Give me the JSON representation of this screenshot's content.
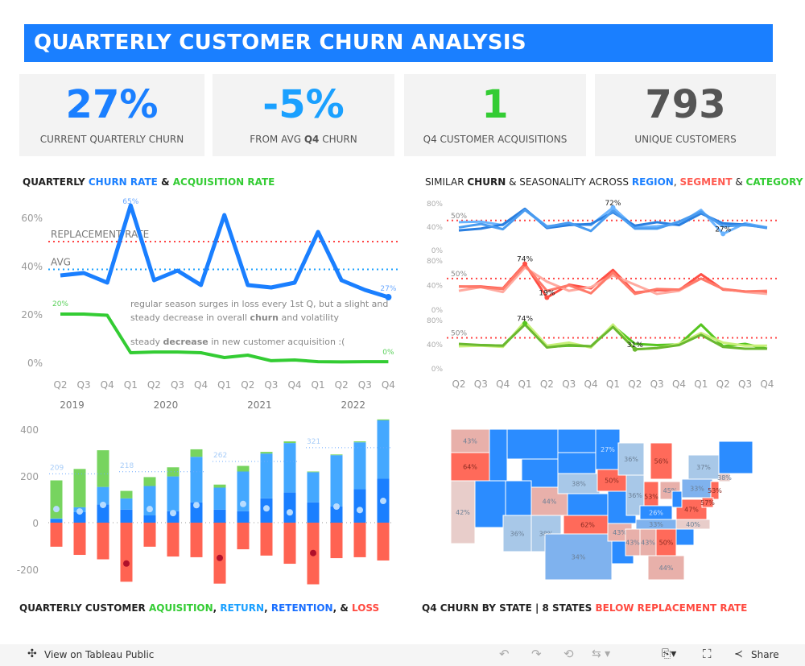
{
  "header": {
    "title": "QUARTERLY CUSTOMER CHURN ANALYSIS"
  },
  "kpis": [
    {
      "value": "27%",
      "label": "CURRENT QUARTERLY CHURN",
      "color": "#1a7fff"
    },
    {
      "value": "-5%",
      "label_pre": "FROM AVG ",
      "label_bold": "Q4",
      "label_post": " CHURN",
      "color": "#1aa0ff"
    },
    {
      "value": "1",
      "label": "Q4 CUSTOMER ACQUISITIONS",
      "color": "#33cc33"
    },
    {
      "value": "793",
      "label": "UNIQUE CUSTOMERS",
      "color": "#555555"
    }
  ],
  "titles": {
    "churn": [
      "QUARTERLY ",
      "CHURN RATE",
      " & ",
      "ACQUISITION RATE"
    ],
    "similar": [
      "SIMILAR ",
      "CHURN",
      " & SEASONALITY ACROSS ",
      "REGION",
      ", ",
      "SEGMENT",
      " & ",
      "CATEGORY"
    ],
    "bars": [
      "QUARTERLY CUSTOMER ",
      "AQUISITION",
      ", ",
      "RETURN",
      ", ",
      "RETENTION",
      ", & ",
      "LOSS"
    ],
    "map": [
      "Q4 CHURN BY STATE  |  8 STATES ",
      "BELOW REPLACEMENT RATE"
    ]
  },
  "chart_data": [
    {
      "type": "line",
      "name": "churn-acquisition",
      "quarters": [
        "Q2",
        "Q3",
        "Q4",
        "Q1",
        "Q2",
        "Q3",
        "Q4",
        "Q1",
        "Q2",
        "Q3",
        "Q4",
        "Q1",
        "Q2",
        "Q3",
        "Q4"
      ],
      "years": [
        "2019",
        "2020",
        "2021",
        "2022"
      ],
      "yticks": [
        "0%",
        "20%",
        "40%",
        "60%"
      ],
      "ylim": [
        0,
        65
      ],
      "series": [
        {
          "name": "Churn rate",
          "color": "#1a7fff",
          "values": [
            36,
            37,
            33,
            65,
            34,
            38,
            32,
            61,
            32,
            31,
            33,
            54,
            34,
            30,
            27
          ]
        },
        {
          "name": "Acquisition rate",
          "color": "#33cc33",
          "values": [
            20,
            20,
            19.5,
            4,
            4.3,
            4.3,
            4,
            2,
            3,
            0.7,
            1,
            0.3,
            0.2,
            0.3,
            0.3
          ]
        }
      ],
      "labels": {
        "churn_first": "65%",
        "churn_last": "27%",
        "acq_first": "20%",
        "acq_last": "0%"
      },
      "reference": [
        {
          "name": "REPLACEMENT RATE",
          "value": 50,
          "color": "#ff4444"
        },
        {
          "name": "AVG",
          "value": 38.5,
          "color": "#1aa0ff"
        }
      ],
      "annotations": [
        "regular season surges in loss every 1st Q, but a slight and",
        "steady decrease in overall ",
        "churn",
        " and volatility",
        "steady ",
        "decrease",
        " in new customer acquisition :("
      ]
    },
    {
      "type": "line",
      "name": "small-multiples",
      "quarters": [
        "Q2",
        "Q3",
        "Q4",
        "Q1",
        "Q2",
        "Q3",
        "Q4",
        "Q1",
        "Q2",
        "Q3",
        "Q4",
        "Q1",
        "Q2",
        "Q3",
        "Q4"
      ],
      "yticks": [
        "0%",
        "40%",
        "80%"
      ],
      "ref_label": "50%",
      "ylim": [
        0,
        80
      ],
      "panels": [
        {
          "name": "Region",
          "colors": [
            "#6ab4ff",
            "#2a7fe0",
            "#4a9cf0"
          ],
          "series": [
            [
              47,
              48,
              42,
              69,
              40,
              44,
              42,
              72,
              38,
              40,
              44,
              68,
              27,
              45,
              38
            ],
            [
              33,
              36,
              43,
              70,
              37,
              42,
              44,
              64,
              41,
              47,
              42,
              62,
              45,
              43,
              37
            ],
            [
              38,
              44,
              35,
              68,
              39,
              46,
              32,
              67,
              36,
              36,
              48,
              65,
              40,
              42,
              38
            ]
          ],
          "labels": [
            {
              "i": 7,
              "s": 0,
              "t": "72%"
            },
            {
              "i": 12,
              "s": 0,
              "t": "27%"
            }
          ]
        },
        {
          "name": "Segment",
          "colors": [
            "#ff4f45",
            "#ffaaa0",
            "#ff7a6a"
          ],
          "series": [
            [
              37,
              37,
              34,
              74,
              19,
              40,
              34,
              64,
              27,
              31,
              31,
              57,
              32,
              29,
              27
            ],
            [
              30,
              36,
              28,
              68,
              45,
              30,
              36,
              55,
              40,
              25,
              30,
              50,
              33,
              28,
              25
            ],
            [
              37,
              36,
              33,
              72,
              30,
              39,
              26,
              60,
              25,
              33,
              32,
              50,
              33,
              29,
              30
            ]
          ],
          "labels": [
            {
              "i": 3,
              "s": 0,
              "t": "74%"
            },
            {
              "i": 4,
              "s": 0,
              "t": "19%"
            }
          ]
        },
        {
          "name": "Category",
          "colors": [
            "#55c520",
            "#c8f07a",
            "#6ab830"
          ],
          "series": [
            [
              38,
              38,
              37,
              74,
              35,
              37,
              36,
              70,
              40,
              38,
              39,
              72,
              36,
              40,
              32
            ],
            [
              36,
              37,
              35,
              77,
              37,
              42,
              34,
              72,
              31,
              33,
              40,
              58,
              42,
              37,
              37
            ],
            [
              40,
              38,
              37,
              72,
              34,
              38,
              36,
              68,
              31,
              33,
              38,
              55,
              35,
              32,
              32
            ]
          ],
          "labels": [
            {
              "i": 3,
              "s": 0,
              "t": "74%"
            },
            {
              "i": 8,
              "s": 2,
              "t": "31%"
            }
          ]
        }
      ]
    },
    {
      "type": "bar",
      "name": "customer-flows",
      "yticks": [
        "-200",
        "0",
        "200",
        "400"
      ],
      "ylim": [
        -280,
        450
      ],
      "series": [
        {
          "name": "Retention",
          "color": "#1a7fff",
          "values": [
            16,
            45,
            78,
            56,
            31,
            49,
            87,
            56,
            49,
            104,
            129,
            87,
            70,
            143,
            188
          ]
        },
        {
          "name": "Return",
          "color": "#44a8ff",
          "values": [
            2,
            21,
            75,
            48,
            126,
            149,
            195,
            94,
            170,
            192,
            212,
            129,
            219,
            201,
            250
          ]
        },
        {
          "name": "Acquisition",
          "color": "#77d45f",
          "values": [
            163,
            164,
            157,
            32,
            38,
            39,
            32,
            13,
            24,
            7,
            7,
            3,
            3,
            4,
            4
          ]
        },
        {
          "name": "Loss",
          "color": "#ff6352",
          "values": [
            -103,
            -138,
            -157,
            -253,
            -103,
            -145,
            -148,
            -261,
            -114,
            -141,
            -176,
            -264,
            -152,
            -148,
            -162
          ]
        }
      ],
      "net_markers": [
        58,
        48,
        76,
        -175,
        58,
        41,
        75,
        -151,
        80,
        61,
        44,
        -130,
        69,
        54,
        93
      ],
      "averages": [
        {
          "label": "209",
          "value": 209,
          "from": 0,
          "to": 2
        },
        {
          "label": "218",
          "value": 218,
          "from": 3,
          "to": 6
        },
        {
          "label": "262",
          "value": 262,
          "from": 7,
          "to": 10
        },
        {
          "label": "321",
          "value": 321,
          "from": 11,
          "to": 14
        }
      ]
    }
  ],
  "map": {
    "states": {
      "WA": "43%",
      "OR": "64%",
      "CA": "42%",
      "CO": "44%",
      "AZ": "36%",
      "NM": "38%",
      "NE": "38%",
      "OK": "62%",
      "TX": "34%",
      "MN": "27%",
      "IA": "50%",
      "AR": "43%",
      "WI": "36%",
      "IL": "36%",
      "MI": "56%",
      "IN": "53%",
      "OH": "45%",
      "KY": "26%",
      "TN": "33%",
      "MS": "43%",
      "AL": "43%",
      "GA": "50%",
      "FL": "44%",
      "NC": "40%",
      "VA": "47%",
      "PA": "33%",
      "NY": "37%",
      "NJ": "53%",
      "MD": "57%",
      "MA": "38%"
    }
  },
  "footer": {
    "view": "View on Tableau Public",
    "share": "Share"
  }
}
